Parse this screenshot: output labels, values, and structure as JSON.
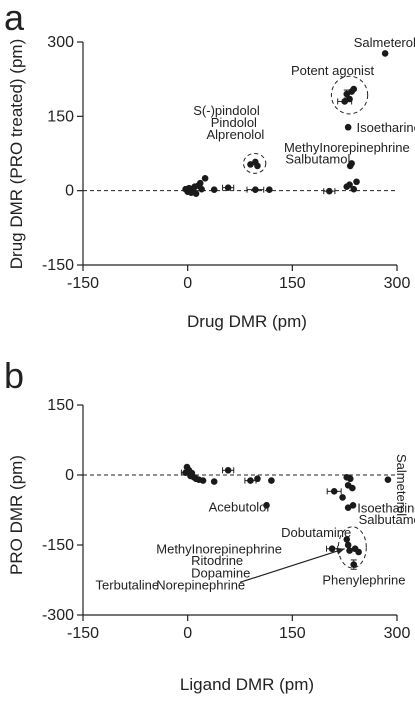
{
  "chart_data": [
    {
      "panel_label": "a",
      "type": "scatter",
      "xlabel": "Drug DMR (pm)",
      "ylabel": "Drug DMR (PRO treated) (pm)",
      "xlim": [
        -150,
        300
      ],
      "ylim": [
        -150,
        300
      ],
      "xticks": [
        -150,
        0,
        150,
        300
      ],
      "yticks": [
        -150,
        0,
        150,
        300
      ],
      "reference_line_y": 0,
      "points": [
        {
          "x": -3,
          "y": 3,
          "xerr": 0,
          "yerr": 0
        },
        {
          "x": 0,
          "y": -2,
          "xerr": 0,
          "yerr": 0
        },
        {
          "x": 2,
          "y": 5,
          "xerr": 0,
          "yerr": 0
        },
        {
          "x": 5,
          "y": -4,
          "xerr": 0,
          "yerr": 0
        },
        {
          "x": 8,
          "y": 2,
          "xerr": 0,
          "yerr": 0
        },
        {
          "x": 10,
          "y": 8,
          "xerr": 0,
          "yerr": 0
        },
        {
          "x": 12,
          "y": -6,
          "xerr": 0,
          "yerr": 0
        },
        {
          "x": 15,
          "y": 10,
          "xerr": 0,
          "yerr": 0
        },
        {
          "x": 18,
          "y": 15,
          "xerr": 0,
          "yerr": 0
        },
        {
          "x": 20,
          "y": 3,
          "xerr": 0,
          "yerr": 0
        },
        {
          "x": 25,
          "y": 25,
          "xerr": 0,
          "yerr": 0
        },
        {
          "x": 38,
          "y": 2,
          "xerr": 0,
          "yerr": 0
        },
        {
          "x": 58,
          "y": 6,
          "xerr": 8,
          "yerr": 0
        },
        {
          "x": 90,
          "y": 53,
          "xerr": 0,
          "yerr": 0
        },
        {
          "x": 97,
          "y": 58,
          "xerr": 0,
          "yerr": 0
        },
        {
          "x": 100,
          "y": 50,
          "xerr": 0,
          "yerr": 0
        },
        {
          "x": 97,
          "y": 2,
          "xerr": 12,
          "yerr": 0
        },
        {
          "x": 117,
          "y": 2,
          "xerr": 0,
          "yerr": 0
        },
        {
          "x": 203,
          "y": -1,
          "xerr": 8,
          "yerr": 0
        },
        {
          "x": 225,
          "y": 180,
          "xerr": 10,
          "yerr": 0
        },
        {
          "x": 228,
          "y": 195,
          "xerr": 0,
          "yerr": 8
        },
        {
          "x": 232,
          "y": 185,
          "xerr": 0,
          "yerr": 0
        },
        {
          "x": 235,
          "y": 200,
          "xerr": 0,
          "yerr": 0
        },
        {
          "x": 238,
          "y": 205,
          "xerr": 0,
          "yerr": 0
        },
        {
          "x": 230,
          "y": 128,
          "xerr": 0,
          "yerr": 0
        },
        {
          "x": 233,
          "y": 50,
          "xerr": 0,
          "yerr": 0
        },
        {
          "x": 235,
          "y": 55,
          "xerr": 0,
          "yerr": 0
        },
        {
          "x": 228,
          "y": 8,
          "xerr": 0,
          "yerr": 0
        },
        {
          "x": 232,
          "y": 12,
          "xerr": 0,
          "yerr": 0
        },
        {
          "x": 238,
          "y": 3,
          "xerr": 0,
          "yerr": 0
        },
        {
          "x": 242,
          "y": 18,
          "xerr": 0,
          "yerr": 0
        },
        {
          "x": 283,
          "y": 277,
          "xerr": 0,
          "yerr": 0
        }
      ],
      "annotations": [
        {
          "text": "Salmeterol",
          "x": 238,
          "y": 290
        },
        {
          "text": "Potent agonist",
          "x": 148,
          "y": 233
        },
        {
          "text": "Isoetharine",
          "x": 242,
          "y": 118
        },
        {
          "text": "S(-)pindolol",
          "x": 8,
          "y": 153
        },
        {
          "text": "Pindolol",
          "x": 33,
          "y": 128
        },
        {
          "text": "Alprenolol",
          "x": 27,
          "y": 104
        },
        {
          "text": "MethyInorepinephrine",
          "x": 138,
          "y": 78
        },
        {
          "text": "Salbutamol",
          "x": 140,
          "y": 55
        }
      ]
    },
    {
      "panel_label": "b",
      "type": "scatter",
      "xlabel": "Ligand DMR (pm)",
      "ylabel": "PRO DMR (pm)",
      "xlim": [
        -150,
        300
      ],
      "ylim": [
        -300,
        150
      ],
      "xticks": [
        -150,
        0,
        150,
        300
      ],
      "yticks": [
        -300,
        -150,
        0,
        150
      ],
      "reference_line_y": 0,
      "points": [
        {
          "x": -3,
          "y": 5,
          "xerr": 6,
          "yerr": 0
        },
        {
          "x": -1,
          "y": 17,
          "xerr": 0,
          "yerr": 0
        },
        {
          "x": 2,
          "y": 10,
          "xerr": 0,
          "yerr": 0
        },
        {
          "x": 4,
          "y": -2,
          "xerr": 0,
          "yerr": 0
        },
        {
          "x": 6,
          "y": 4,
          "xerr": 0,
          "yerr": 0
        },
        {
          "x": 9,
          "y": -5,
          "xerr": 0,
          "yerr": 0
        },
        {
          "x": 12,
          "y": -8,
          "xerr": 0,
          "yerr": 0
        },
        {
          "x": 16,
          "y": -10,
          "xerr": 0,
          "yerr": 0
        },
        {
          "x": 22,
          "y": -12,
          "xerr": 0,
          "yerr": 0
        },
        {
          "x": 38,
          "y": -14,
          "xerr": 0,
          "yerr": 0
        },
        {
          "x": 58,
          "y": 10,
          "xerr": 8,
          "yerr": 0
        },
        {
          "x": 90,
          "y": -12,
          "xerr": 8,
          "yerr": 0
        },
        {
          "x": 100,
          "y": -8,
          "xerr": 0,
          "yerr": 0
        },
        {
          "x": 120,
          "y": -12,
          "xerr": 0,
          "yerr": 0
        },
        {
          "x": 113,
          "y": -65,
          "xerr": 0,
          "yerr": 0
        },
        {
          "x": 207,
          "y": -158,
          "xerr": 8,
          "yerr": 0
        },
        {
          "x": 210,
          "y": -35,
          "xerr": 10,
          "yerr": 0
        },
        {
          "x": 222,
          "y": -48,
          "xerr": 0,
          "yerr": 0
        },
        {
          "x": 228,
          "y": -5,
          "xerr": 0,
          "yerr": 0
        },
        {
          "x": 233,
          "y": -8,
          "xerr": 0,
          "yerr": 0
        },
        {
          "x": 230,
          "y": -22,
          "xerr": 0,
          "yerr": 0
        },
        {
          "x": 236,
          "y": -28,
          "xerr": 0,
          "yerr": 0
        },
        {
          "x": 230,
          "y": -70,
          "xerr": 0,
          "yerr": 0
        },
        {
          "x": 237,
          "y": -65,
          "xerr": 0,
          "yerr": 0
        },
        {
          "x": 228,
          "y": -138,
          "xerr": 0,
          "yerr": 0
        },
        {
          "x": 230,
          "y": -150,
          "xerr": 0,
          "yerr": 0
        },
        {
          "x": 232,
          "y": -162,
          "xerr": 0,
          "yerr": 0
        },
        {
          "x": 240,
          "y": -158,
          "xerr": 0,
          "yerr": 0
        },
        {
          "x": 245,
          "y": -165,
          "xerr": 0,
          "yerr": 0
        },
        {
          "x": 238,
          "y": -192,
          "xerr": 0,
          "yerr": 10
        },
        {
          "x": 287,
          "y": -10,
          "xerr": 0,
          "yerr": 0
        }
      ],
      "annotations": [
        {
          "text": "Salmeterol",
          "x": 300,
          "y": 45,
          "rotate": 90
        },
        {
          "text": "Acebutolol",
          "x": 30,
          "y": -78
        },
        {
          "text": "Isoetharine",
          "x": 243,
          "y": -80
        },
        {
          "text": "Salbutamol",
          "x": 245,
          "y": -105
        },
        {
          "text": "Dobutamine",
          "x": 134,
          "y": -133
        },
        {
          "text": "MethyInorepinephrine",
          "x": -45,
          "y": -168
        },
        {
          "text": "Ritodrine",
          "x": 5,
          "y": -193
        },
        {
          "text": "Dopamine",
          "x": 5,
          "y": -220
        },
        {
          "text": "Phenylephrine",
          "x": 193,
          "y": -235
        },
        {
          "text": "Terbutaline",
          "x": -132,
          "y": -245
        },
        {
          "text": "Norepinephrine",
          "x": -45,
          "y": -245
        }
      ]
    }
  ]
}
